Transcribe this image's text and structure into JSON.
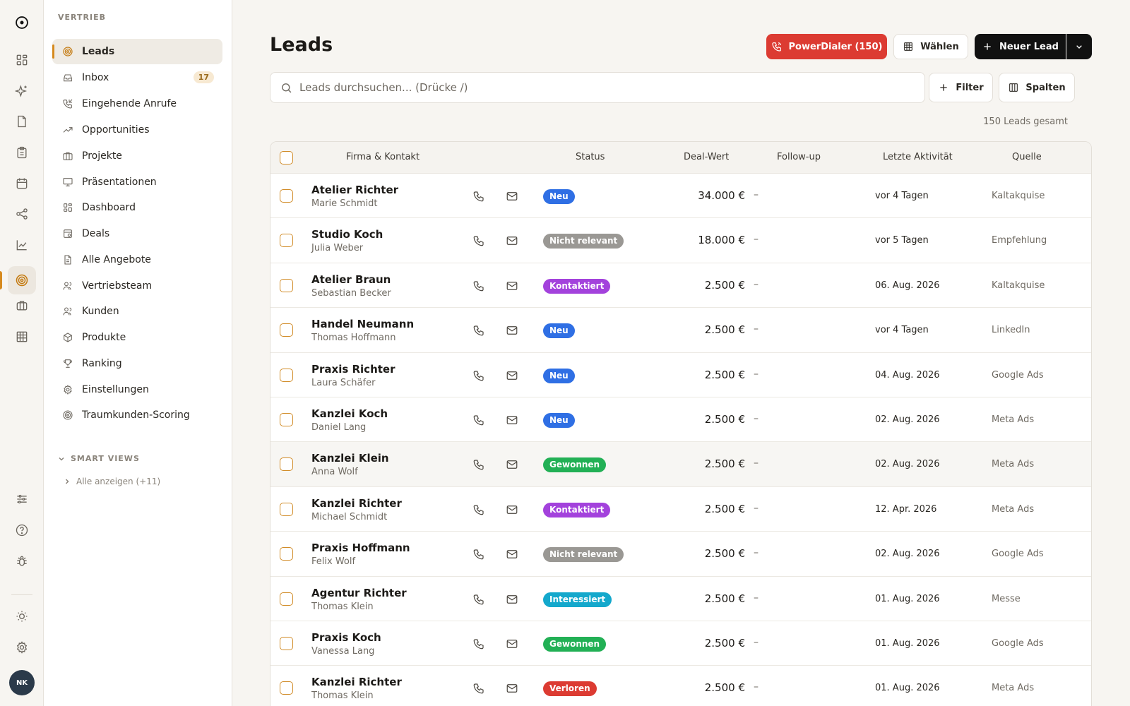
{
  "sidebar": {
    "section": "VERTRIEB",
    "items": [
      {
        "label": "Leads",
        "icon": "target-icon",
        "active": true
      },
      {
        "label": "Inbox",
        "icon": "inbox-icon",
        "badge": "17"
      },
      {
        "label": "Eingehende Anrufe",
        "icon": "phone-incoming-icon"
      },
      {
        "label": "Opportunities",
        "icon": "trending-up-icon"
      },
      {
        "label": "Projekte",
        "icon": "briefcase-icon"
      },
      {
        "label": "Präsentationen",
        "icon": "presentation-icon"
      },
      {
        "label": "Dashboard",
        "icon": "dashboard-icon"
      },
      {
        "label": "Deals",
        "icon": "deals-icon"
      },
      {
        "label": "Alle Angebote",
        "icon": "file-icon"
      },
      {
        "label": "Vertriebsteam",
        "icon": "team-icon"
      },
      {
        "label": "Kunden",
        "icon": "users-icon"
      },
      {
        "label": "Produkte",
        "icon": "package-icon"
      },
      {
        "label": "Ranking",
        "icon": "trophy-icon"
      },
      {
        "label": "Einstellungen",
        "icon": "settings-icon"
      },
      {
        "label": "Traumkunden-Scoring",
        "icon": "scoring-icon"
      }
    ],
    "smart_views": {
      "title": "SMART VIEWS",
      "show_all": "Alle anzeigen (+11)"
    }
  },
  "rail": {
    "avatar": "NK"
  },
  "header": {
    "title": "Leads",
    "power_dialer": "PowerDialer (150)",
    "select": "Wählen",
    "new_lead": "Neuer Lead"
  },
  "search": {
    "placeholder": "Leads durchsuchen... (Drücke /)"
  },
  "toolbar": {
    "filter": "Filter",
    "columns": "Spalten",
    "count": "150 Leads gesamt"
  },
  "table": {
    "headers": {
      "company": "Firma & Kontakt",
      "status": "Status",
      "deal": "Deal-Wert",
      "followup": "Follow-up",
      "last": "Letzte Aktivität",
      "source": "Quelle"
    },
    "rows": [
      {
        "company": "Atelier Richter",
        "contact": "Marie Schmidt",
        "status": "Neu",
        "color": "#2f6fe4",
        "deal": "34.000 €",
        "followup": "–",
        "last": "vor 4 Tagen",
        "source": "Kaltakquise"
      },
      {
        "company": "Studio Koch",
        "contact": "Julia Weber",
        "status": "Nicht relevant",
        "color": "#9a9894",
        "deal": "18.000 €",
        "followup": "–",
        "last": "vor 5 Tagen",
        "source": "Empfehlung"
      },
      {
        "company": "Atelier Braun",
        "contact": "Sebastian Becker",
        "status": "Kontaktiert",
        "color": "#a342dc",
        "deal": "2.500 €",
        "followup": "–",
        "last": "06. Aug. 2026",
        "source": "Kaltakquise"
      },
      {
        "company": "Handel Neumann",
        "contact": "Thomas Hoffmann",
        "status": "Neu",
        "color": "#2f6fe4",
        "deal": "2.500 €",
        "followup": "–",
        "last": "vor 4 Tagen",
        "source": "LinkedIn"
      },
      {
        "company": "Praxis Richter",
        "contact": "Laura Schäfer",
        "status": "Neu",
        "color": "#2f6fe4",
        "deal": "2.500 €",
        "followup": "–",
        "last": "04. Aug. 2026",
        "source": "Google Ads"
      },
      {
        "company": "Kanzlei Koch",
        "contact": "Daniel Lang",
        "status": "Neu",
        "color": "#2f6fe4",
        "deal": "2.500 €",
        "followup": "–",
        "last": "02. Aug. 2026",
        "source": "Meta Ads"
      },
      {
        "company": "Kanzlei Klein",
        "contact": "Anna Wolf",
        "status": "Gewonnen",
        "color": "#22b055",
        "deal": "2.500 €",
        "followup": "–",
        "last": "02. Aug. 2026",
        "source": "Meta Ads"
      },
      {
        "company": "Kanzlei Richter",
        "contact": "Michael Schmidt",
        "status": "Kontaktiert",
        "color": "#a342dc",
        "deal": "2.500 €",
        "followup": "–",
        "last": "12. Apr. 2026",
        "source": "Meta Ads"
      },
      {
        "company": "Praxis Hoffmann",
        "contact": "Felix Wolf",
        "status": "Nicht relevant",
        "color": "#9a9894",
        "deal": "2.500 €",
        "followup": "–",
        "last": "02. Aug. 2026",
        "source": "Google Ads"
      },
      {
        "company": "Agentur Richter",
        "contact": "Thomas Klein",
        "status": "Interessiert",
        "color": "#14a8cc",
        "deal": "2.500 €",
        "followup": "–",
        "last": "01. Aug. 2026",
        "source": "Messe"
      },
      {
        "company": "Praxis Koch",
        "contact": "Vanessa Lang",
        "status": "Gewonnen",
        "color": "#22b055",
        "deal": "2.500 €",
        "followup": "–",
        "last": "01. Aug. 2026",
        "source": "Google Ads"
      },
      {
        "company": "Kanzlei Richter",
        "contact": "Thomas Klein",
        "status": "Verloren",
        "color": "#dc3b32",
        "deal": "2.500 €",
        "followup": "–",
        "last": "01. Aug. 2026",
        "source": "Meta Ads"
      }
    ]
  }
}
